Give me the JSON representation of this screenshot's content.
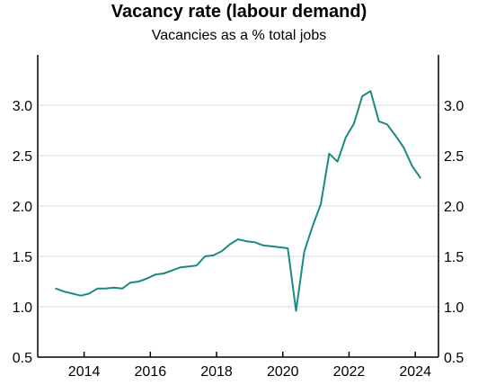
{
  "chart_data": {
    "type": "line",
    "title": "Vacancy rate (labour demand)",
    "subtitle": "Vacancies as a % total jobs",
    "xlabel": "",
    "ylabel": "",
    "xlim": [
      2012.6,
      2024.7
    ],
    "ylim": [
      0.5,
      3.5
    ],
    "y_ticks": [
      0.5,
      1.0,
      1.5,
      2.0,
      2.5,
      3.0
    ],
    "y_tick_labels": [
      "0.5",
      "1.0",
      "1.5",
      "2.0",
      "2.5",
      "3.0"
    ],
    "x_ticks": [
      2014,
      2016,
      2018,
      2020,
      2022,
      2024
    ],
    "x_tick_labels": [
      "2014",
      "2016",
      "2018",
      "2020",
      "2022",
      "2024"
    ],
    "grid": "horizontal",
    "line_color": "#1a8a80",
    "grid_color": "#d9d9d9",
    "series": [
      {
        "x": [
          2013.15,
          2013.4,
          2013.65,
          2013.9,
          2014.15,
          2014.4,
          2014.65,
          2014.9,
          2015.15,
          2015.4,
          2015.65,
          2015.9,
          2016.15,
          2016.4,
          2016.65,
          2016.9,
          2017.15,
          2017.4,
          2017.65,
          2017.9,
          2018.15,
          2018.4,
          2018.65,
          2018.9,
          2019.15,
          2019.4,
          2019.65,
          2019.9,
          2020.15,
          2020.4,
          2020.65,
          2020.9,
          2021.15,
          2021.4,
          2021.65,
          2021.9,
          2022.15,
          2022.4,
          2022.65,
          2022.9,
          2023.15,
          2023.4,
          2023.65,
          2023.9,
          2024.15
        ],
        "values": [
          1.18,
          1.15,
          1.13,
          1.11,
          1.13,
          1.18,
          1.18,
          1.19,
          1.18,
          1.24,
          1.25,
          1.28,
          1.32,
          1.33,
          1.36,
          1.39,
          1.4,
          1.41,
          1.5,
          1.51,
          1.55,
          1.62,
          1.67,
          1.65,
          1.64,
          1.61,
          1.6,
          1.59,
          1.58,
          0.96,
          1.55,
          1.8,
          2.02,
          2.52,
          2.44,
          2.68,
          2.82,
          3.09,
          3.14,
          2.84,
          2.81,
          2.7,
          2.58,
          2.4,
          2.28
        ]
      }
    ]
  }
}
